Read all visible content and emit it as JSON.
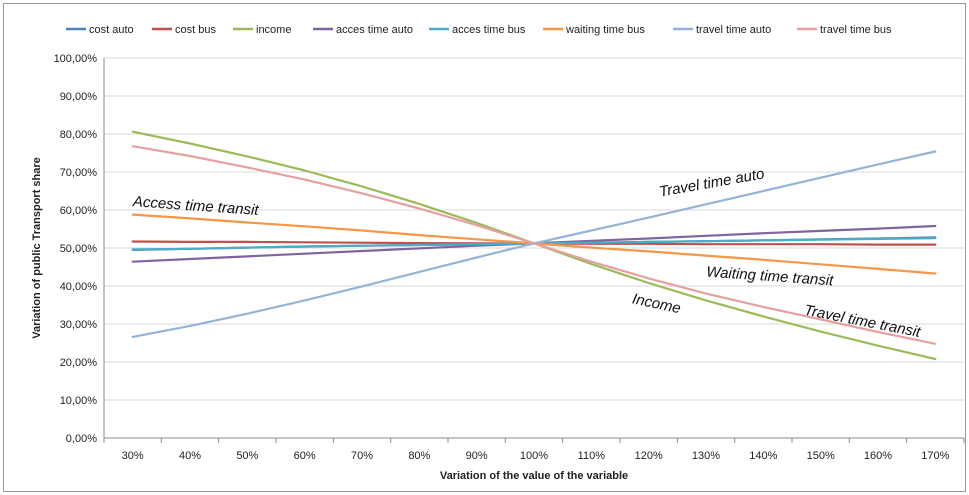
{
  "chart_data": {
    "type": "line",
    "xlabel": "Variation of the value of the variable",
    "ylabel": "Variation of public Transport share",
    "x": [
      30,
      40,
      50,
      60,
      70,
      80,
      90,
      100,
      110,
      120,
      130,
      140,
      150,
      160,
      170
    ],
    "x_tick_labels": [
      "30%",
      "40%",
      "50%",
      "60%",
      "70%",
      "80%",
      "90%",
      "100%",
      "110%",
      "120%",
      "130%",
      "140%",
      "150%",
      "160%",
      "170%"
    ],
    "y_tick_labels": [
      "0,00%",
      "10,00%",
      "20,00%",
      "30,00%",
      "40,00%",
      "50,00%",
      "60,00%",
      "70,00%",
      "80,00%",
      "90,00%",
      "100,00%"
    ],
    "ylim": [
      0,
      100
    ],
    "grid": true,
    "legend_position": "top",
    "series": [
      {
        "name": "cost auto",
        "color": "#4f81bd",
        "values": [
          49.5,
          49.8,
          50.1,
          50.4,
          50.6,
          50.8,
          51.0,
          51.2,
          51.4,
          51.6,
          51.8,
          52.0,
          52.3,
          52.5,
          52.8
        ]
      },
      {
        "name": "cost bus",
        "color": "#c0504d",
        "values": [
          51.7,
          51.6,
          51.6,
          51.5,
          51.4,
          51.3,
          51.2,
          51.2,
          51.1,
          51.1,
          51.0,
          51.0,
          51.0,
          50.9,
          50.9
        ]
      },
      {
        "name": "income",
        "color": "#9bbb59",
        "values": [
          80.6,
          77.5,
          74.1,
          70.4,
          66.2,
          61.6,
          56.6,
          51.2,
          45.8,
          40.8,
          36.2,
          32.0,
          28.0,
          24.3,
          20.8
        ]
      },
      {
        "name": "acces time auto",
        "color": "#8064a2",
        "values": [
          46.4,
          47.1,
          47.8,
          48.5,
          49.2,
          49.9,
          50.6,
          51.2,
          51.9,
          52.5,
          53.2,
          53.9,
          54.5,
          55.1,
          55.8
        ]
      },
      {
        "name": "acces time bus",
        "color": "#4bacc6",
        "values": [
          49.6,
          49.8,
          50.1,
          50.4,
          50.6,
          50.8,
          51.0,
          51.2,
          51.4,
          51.6,
          51.8,
          52.0,
          52.2,
          52.4,
          52.6
        ]
      },
      {
        "name": "waiting time bus",
        "color": "#f79646",
        "values": [
          58.8,
          57.8,
          56.7,
          55.7,
          54.6,
          53.4,
          52.3,
          51.2,
          50.1,
          49.1,
          48.0,
          46.9,
          45.7,
          44.5,
          43.3
        ]
      },
      {
        "name": "travel time auto",
        "color": "#95b3d7",
        "values": [
          26.6,
          29.5,
          32.7,
          36.2,
          39.9,
          43.7,
          47.5,
          51.2,
          54.6,
          58.0,
          61.5,
          65.0,
          68.5,
          72.0,
          75.4
        ]
      },
      {
        "name": "travel time bus",
        "color": "#e6a0a0",
        "values": [
          76.8,
          74.2,
          71.2,
          68.0,
          64.4,
          60.4,
          56.0,
          51.2,
          46.4,
          42.0,
          38.0,
          34.5,
          31.2,
          27.9,
          24.8
        ]
      }
    ],
    "annotations": [
      {
        "text": "Access time transit",
        "x": 30,
        "y": 61.0
      },
      {
        "text": "Travel time auto",
        "x": 122,
        "y": 63.5
      },
      {
        "text": "Waiting time transit",
        "x": 130,
        "y": 42.5
      },
      {
        "text": "Income",
        "x": 117,
        "y": 35.5
      },
      {
        "text": "Travel time transit",
        "x": 147,
        "y": 32.5
      }
    ]
  }
}
